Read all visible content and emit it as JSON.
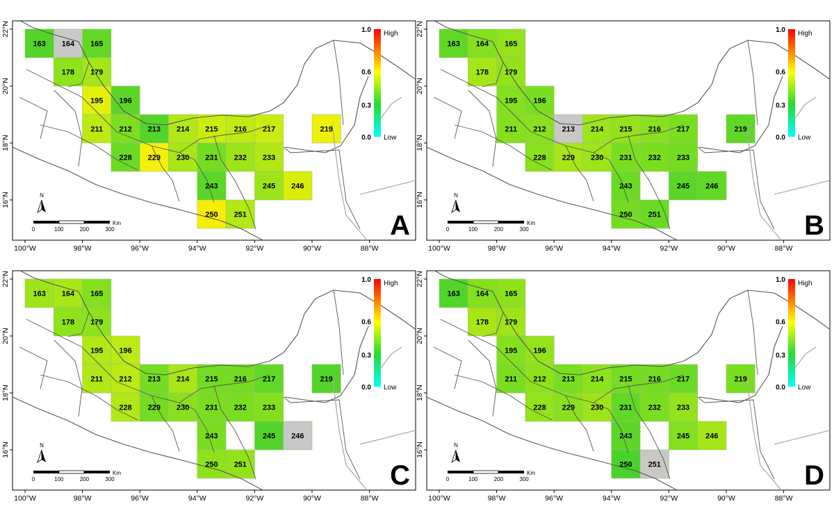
{
  "axes": {
    "lon_ticks": [
      "100°W",
      "98°W",
      "96°W",
      "94°W",
      "92°W",
      "90°W",
      "88°W"
    ],
    "lat_ticks": [
      "22°N",
      "20°N",
      "18°N",
      "16°N"
    ]
  },
  "legend": {
    "high_label": "High",
    "low_label": "Low",
    "ticks": [
      "1.0",
      "0.6",
      "0.3",
      "0.0"
    ]
  },
  "north_label": "N",
  "scalebar": {
    "ticks": [
      "0",
      "100",
      "200",
      "300"
    ],
    "unit": "Km"
  },
  "panels": [
    {
      "label": "A",
      "cells": [
        {
          "id": "163",
          "color": "#52d42a"
        },
        {
          "id": "164",
          "color": "#c8c8c8"
        },
        {
          "id": "165",
          "color": "#62d826"
        },
        {
          "id": "178",
          "color": "#8ee21c"
        },
        {
          "id": "179",
          "color": "#a4e619"
        },
        {
          "id": "195",
          "color": "#e4f00c"
        },
        {
          "id": "196",
          "color": "#5cd628"
        },
        {
          "id": "211",
          "color": "#bcea14"
        },
        {
          "id": "212",
          "color": "#7ede20"
        },
        {
          "id": "213",
          "color": "#52d42a"
        },
        {
          "id": "214",
          "color": "#b2e816"
        },
        {
          "id": "215",
          "color": "#caed10"
        },
        {
          "id": "216",
          "color": "#bfeb13"
        },
        {
          "id": "217",
          "color": "#caed10"
        },
        {
          "id": "219",
          "color": "#ecf00a"
        },
        {
          "id": "228",
          "color": "#6ada24"
        },
        {
          "id": "229",
          "color": "#f4f00a"
        },
        {
          "id": "230",
          "color": "#a8e618"
        },
        {
          "id": "231",
          "color": "#74dc22"
        },
        {
          "id": "232",
          "color": "#9ee41a"
        },
        {
          "id": "233",
          "color": "#b2e816"
        },
        {
          "id": "243",
          "color": "#5cd628"
        },
        {
          "id": "245",
          "color": "#9ee41a"
        },
        {
          "id": "246",
          "color": "#daee0c"
        },
        {
          "id": "250",
          "color": "#f6ee08"
        },
        {
          "id": "251",
          "color": "#b2e816"
        }
      ]
    },
    {
      "label": "B",
      "cells": [
        {
          "id": "163",
          "color": "#62d826"
        },
        {
          "id": "164",
          "color": "#84e01e"
        },
        {
          "id": "165",
          "color": "#94e21c"
        },
        {
          "id": "178",
          "color": "#a4e619"
        },
        {
          "id": "179",
          "color": "#94e21c"
        },
        {
          "id": "195",
          "color": "#84e01e"
        },
        {
          "id": "196",
          "color": "#7ade20"
        },
        {
          "id": "211",
          "color": "#84e01e"
        },
        {
          "id": "212",
          "color": "#8ae01e"
        },
        {
          "id": "213",
          "color": "#c8c8c8"
        },
        {
          "id": "214",
          "color": "#9ee41a"
        },
        {
          "id": "215",
          "color": "#94e21c"
        },
        {
          "id": "216",
          "color": "#8ae01e"
        },
        {
          "id": "217",
          "color": "#7ade20"
        },
        {
          "id": "219",
          "color": "#62d826"
        },
        {
          "id": "228",
          "color": "#8ae01e"
        },
        {
          "id": "229",
          "color": "#a8e618"
        },
        {
          "id": "230",
          "color": "#9ee41a"
        },
        {
          "id": "231",
          "color": "#7ade20"
        },
        {
          "id": "232",
          "color": "#7ade20"
        },
        {
          "id": "233",
          "color": "#74dc22"
        },
        {
          "id": "243",
          "color": "#6ada24"
        },
        {
          "id": "245",
          "color": "#5cd628"
        },
        {
          "id": "246",
          "color": "#62d826"
        },
        {
          "id": "250",
          "color": "#74dc22"
        },
        {
          "id": "251",
          "color": "#6ada24"
        }
      ]
    },
    {
      "label": "C",
      "cells": [
        {
          "id": "163",
          "color": "#9ee41a"
        },
        {
          "id": "164",
          "color": "#a8e618"
        },
        {
          "id": "165",
          "color": "#84e01e"
        },
        {
          "id": "178",
          "color": "#8ee21c"
        },
        {
          "id": "179",
          "color": "#8ee21c"
        },
        {
          "id": "195",
          "color": "#b2e816"
        },
        {
          "id": "196",
          "color": "#bcea14"
        },
        {
          "id": "211",
          "color": "#b2e816"
        },
        {
          "id": "212",
          "color": "#bcea14"
        },
        {
          "id": "213",
          "color": "#74dc22"
        },
        {
          "id": "214",
          "color": "#a8e618"
        },
        {
          "id": "215",
          "color": "#74dc22"
        },
        {
          "id": "216",
          "color": "#74dc22"
        },
        {
          "id": "217",
          "color": "#62d826"
        },
        {
          "id": "219",
          "color": "#52d42a"
        },
        {
          "id": "228",
          "color": "#b2e816"
        },
        {
          "id": "229",
          "color": "#74dc22"
        },
        {
          "id": "230",
          "color": "#8ae01e"
        },
        {
          "id": "231",
          "color": "#7ade20"
        },
        {
          "id": "232",
          "color": "#7ade20"
        },
        {
          "id": "233",
          "color": "#84e01e"
        },
        {
          "id": "243",
          "color": "#7ade20"
        },
        {
          "id": "245",
          "color": "#52d42a"
        },
        {
          "id": "246",
          "color": "#c8c8c8"
        },
        {
          "id": "250",
          "color": "#8ee21c"
        },
        {
          "id": "251",
          "color": "#94e21c"
        }
      ]
    },
    {
      "label": "D",
      "cells": [
        {
          "id": "163",
          "color": "#52d42a"
        },
        {
          "id": "164",
          "color": "#84e01e"
        },
        {
          "id": "165",
          "color": "#8ee21c"
        },
        {
          "id": "178",
          "color": "#a8e618"
        },
        {
          "id": "179",
          "color": "#9ee41a"
        },
        {
          "id": "195",
          "color": "#84e01e"
        },
        {
          "id": "196",
          "color": "#94e21c"
        },
        {
          "id": "211",
          "color": "#7ade20"
        },
        {
          "id": "212",
          "color": "#8ee21c"
        },
        {
          "id": "213",
          "color": "#7ade20"
        },
        {
          "id": "214",
          "color": "#8ee21c"
        },
        {
          "id": "215",
          "color": "#74dc22"
        },
        {
          "id": "216",
          "color": "#74dc22"
        },
        {
          "id": "217",
          "color": "#6ada24"
        },
        {
          "id": "219",
          "color": "#7ade20"
        },
        {
          "id": "228",
          "color": "#94e21c"
        },
        {
          "id": "229",
          "color": "#8ae01e"
        },
        {
          "id": "230",
          "color": "#9ee41a"
        },
        {
          "id": "231",
          "color": "#62d826"
        },
        {
          "id": "232",
          "color": "#7ade20"
        },
        {
          "id": "233",
          "color": "#94e21c"
        },
        {
          "id": "243",
          "color": "#5cd628"
        },
        {
          "id": "245",
          "color": "#84e01e"
        },
        {
          "id": "246",
          "color": "#a4e619"
        },
        {
          "id": "250",
          "color": "#4ad22c"
        },
        {
          "id": "251",
          "color": "#c8c8c8"
        }
      ]
    }
  ]
}
